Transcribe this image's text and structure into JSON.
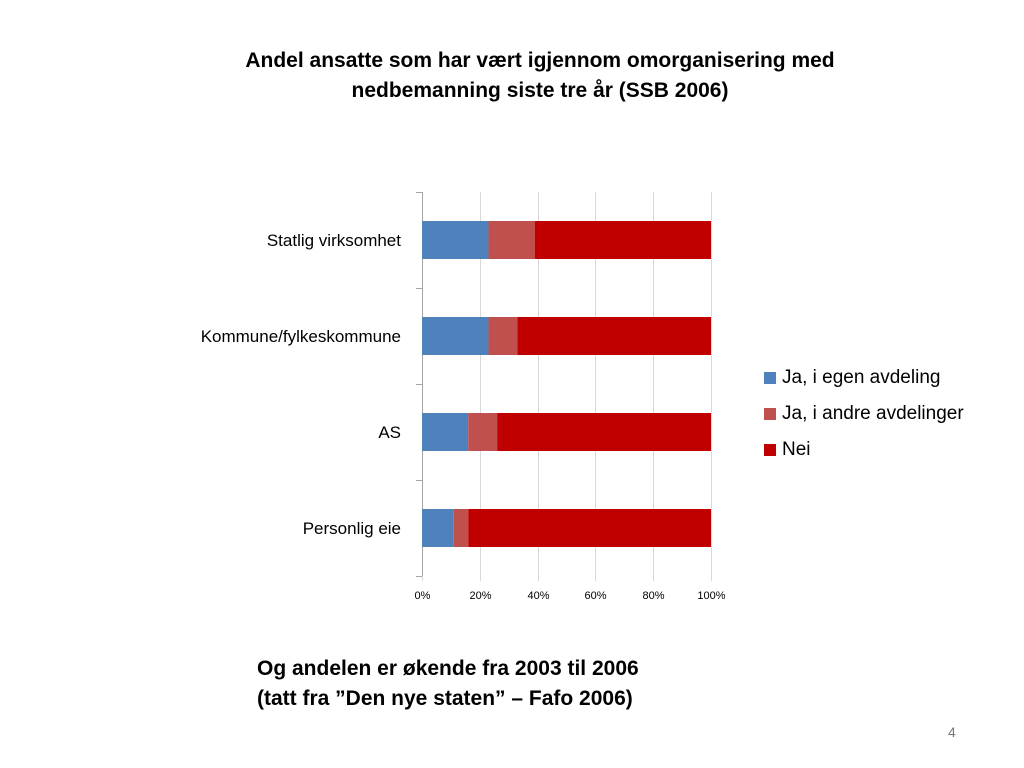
{
  "slide": {
    "title_line1": "Andel ansatte som har vært igjennom omorganisering med",
    "title_line2": "nedbemanning siste tre år (SSB 2006)",
    "note_line1": "Og andelen er økende fra 2003 til 2006",
    "note_line2": "(tatt fra ”Den nye staten” – Fafo 2006)",
    "page_number": "4"
  },
  "chart_data": {
    "type": "bar",
    "orientation": "horizontal",
    "stacked": true,
    "percent_stacked": true,
    "title": "Andel ansatte som har vært igjennom omorganisering med nedbemanning siste tre år (SSB 2006)",
    "categories": [
      "Statlig virksomhet",
      "Kommune/fylkeskommune",
      "AS",
      "Personlig eie"
    ],
    "series": [
      {
        "name": "Ja, i egen avdeling",
        "values": [
          23,
          23,
          16,
          11
        ],
        "color": "#4F81BD"
      },
      {
        "name": "Ja, i andre avdelinger",
        "values": [
          16,
          10,
          10,
          5
        ],
        "color": "#C0504D"
      },
      {
        "name": "Nei",
        "values": [
          61,
          67,
          74,
          84
        ],
        "color": "#C00000"
      }
    ],
    "xlim": [
      0,
      100
    ],
    "x_ticks": [
      "0%",
      "20%",
      "40%",
      "60%",
      "80%",
      "100%"
    ],
    "grid": "vertical",
    "grid_color": "#d9d9d9",
    "legend_position": "right"
  }
}
